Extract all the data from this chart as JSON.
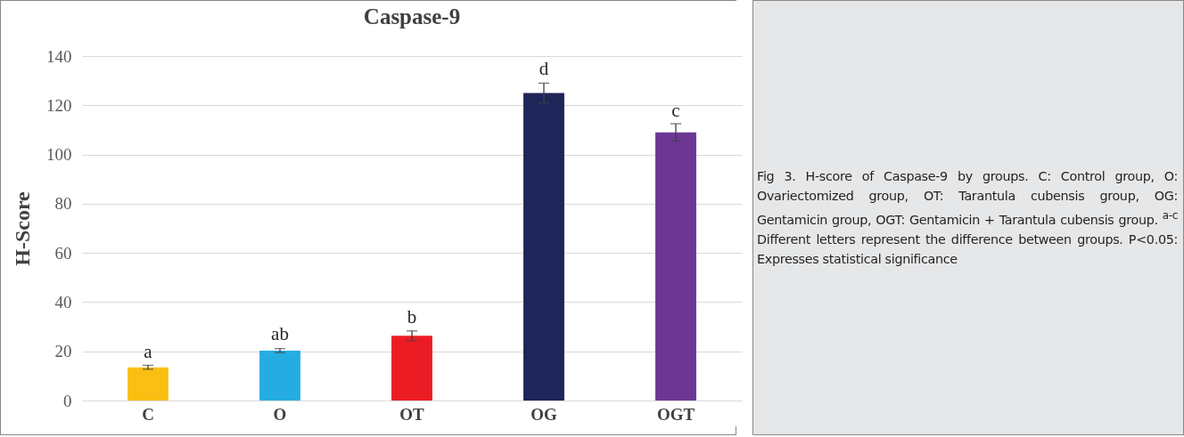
{
  "chart_data": {
    "type": "bar",
    "title": "Caspase-9",
    "ylabel": "H-Score",
    "categories": [
      "C",
      "O",
      "OT",
      "OG",
      "OGT"
    ],
    "values": [
      13.5,
      20.3,
      26.3,
      125,
      109
    ],
    "errors": [
      0.8,
      0.8,
      2,
      4,
      3.5
    ],
    "colors": [
      "#fbbf14",
      "#25ade3",
      "#ec1c24",
      "#1e2559",
      "#6c3794"
    ],
    "ylim": [
      0,
      140
    ],
    "yticks": [
      0,
      20,
      40,
      60,
      80,
      100,
      120,
      140
    ],
    "grid": "y",
    "annotations": [
      {
        "text": "a",
        "x": "C",
        "y": 16
      },
      {
        "text": "ab",
        "x": "O",
        "y": 23
      },
      {
        "text": "b",
        "x": "OT",
        "y": 30
      },
      {
        "text": "d",
        "x": "OG",
        "y": 131
      },
      {
        "text": "c",
        "x": "OGT",
        "y": 114
      },
      "Fig 3. H-score of Caspase-9 by groups. C: Control group, O: Ovariectomized group, OT: Tarantula cubensis group, OG: Gentamicin group, OGT: Gentamicin + Tarantula cubensis group. $^{a-c}$ Different letters represent the difference between groups. P<0.05: Expresses statistical significance"
    ]
  }
}
